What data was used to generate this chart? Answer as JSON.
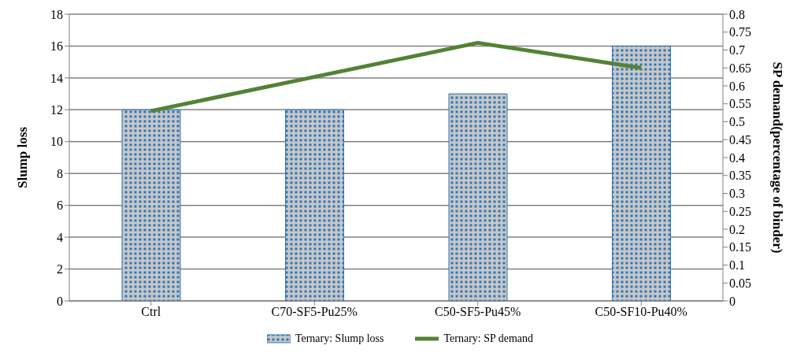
{
  "chart_data": {
    "type": "bar",
    "categories": [
      "Ctrl",
      "C70-SF5-Pu25%",
      "C50-SF5-Pu45%",
      "C50-SF10-Pu40%"
    ],
    "series": [
      {
        "name": "Ternary: Slump loss",
        "color": "#2e75b6",
        "values": [
          12,
          12,
          13,
          16
        ]
      },
      {
        "name": "Ternary: SP demand",
        "type": "line",
        "axis": "y2",
        "color": "#548235",
        "values": [
          0.53,
          0.625,
          0.72,
          0.65
        ]
      }
    ],
    "ylabel": "Slump loss",
    "y2label": "SP demand(percentage of binder)",
    "ylim": [
      0,
      18
    ],
    "yticks": [
      0,
      2,
      4,
      6,
      8,
      10,
      12,
      14,
      16,
      18
    ],
    "y2lim": [
      0,
      0.8
    ],
    "y2ticks": [
      0,
      0.05,
      0.1,
      0.15,
      0.2,
      0.25,
      0.3,
      0.35,
      0.4,
      0.45,
      0.5,
      0.55,
      0.6,
      0.65,
      0.7,
      0.75,
      0.8
    ],
    "grid": "y",
    "legend": "bottom",
    "marker": "none",
    "line_style": "solid"
  }
}
